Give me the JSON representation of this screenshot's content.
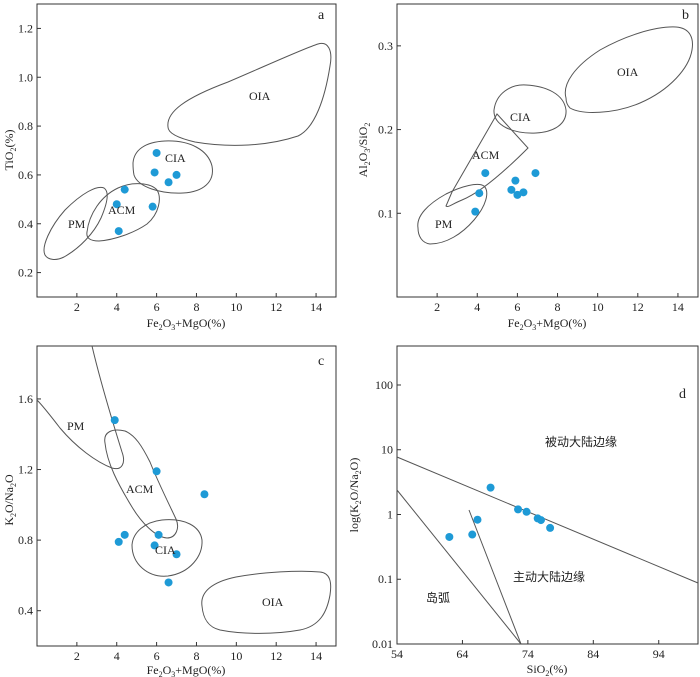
{
  "chart_data": [
    {
      "type": "scatter",
      "panel_label": "a",
      "xlabel": "Fe2O3+MgO(%)",
      "ylabel": "TiO2(%)",
      "xlim": [
        0,
        15
      ],
      "ylim": [
        0.1,
        1.3
      ],
      "x_ticks": [
        "2",
        "4",
        "6",
        "8",
        "10",
        "12",
        "14"
      ],
      "y_ticks": [
        "0.2",
        "0.4",
        "0.6",
        "0.8",
        "1.0",
        "1.2"
      ],
      "point_color": "#1e9ad6",
      "regions": [
        "OIA",
        "CIA",
        "ACM",
        "PM"
      ],
      "points": [
        {
          "x": 6.0,
          "y": 0.69
        },
        {
          "x": 5.9,
          "y": 0.61
        },
        {
          "x": 6.6,
          "y": 0.57
        },
        {
          "x": 7.0,
          "y": 0.6
        },
        {
          "x": 4.4,
          "y": 0.54
        },
        {
          "x": 4.0,
          "y": 0.48
        },
        {
          "x": 5.8,
          "y": 0.47
        },
        {
          "x": 4.1,
          "y": 0.37
        }
      ]
    },
    {
      "type": "scatter",
      "panel_label": "b",
      "xlabel": "Fe2O3+MgO(%)",
      "ylabel": "Al2O3/SiO2",
      "xlim": [
        0,
        15
      ],
      "ylim": [
        0.0,
        0.35
      ],
      "x_ticks": [
        "2",
        "4",
        "6",
        "8",
        "10",
        "12",
        "14"
      ],
      "y_ticks": [
        "0.1",
        "0.2",
        "0.3"
      ],
      "point_color": "#1e9ad6",
      "regions": [
        "OIA",
        "CIA",
        "ACM",
        "PM"
      ],
      "points": [
        {
          "x": 4.4,
          "y": 0.148
        },
        {
          "x": 6.9,
          "y": 0.148
        },
        {
          "x": 5.9,
          "y": 0.139
        },
        {
          "x": 5.7,
          "y": 0.128
        },
        {
          "x": 4.1,
          "y": 0.124
        },
        {
          "x": 6.0,
          "y": 0.122
        },
        {
          "x": 6.3,
          "y": 0.125
        },
        {
          "x": 3.9,
          "y": 0.102
        }
      ]
    },
    {
      "type": "scatter",
      "panel_label": "c",
      "xlabel": "Fe2O3+MgO(%)",
      "ylabel": "K2O/Na2O",
      "xlim": [
        0,
        15
      ],
      "ylim": [
        0.2,
        1.9
      ],
      "x_ticks": [
        "2",
        "4",
        "6",
        "8",
        "10",
        "12",
        "14"
      ],
      "y_ticks": [
        "0.4",
        "0.8",
        "1.2",
        "1.6"
      ],
      "point_color": "#1e9ad6",
      "regions": [
        "PM",
        "ACM",
        "CIA",
        "OIA"
      ],
      "points": [
        {
          "x": 3.9,
          "y": 1.48
        },
        {
          "x": 6.0,
          "y": 1.19
        },
        {
          "x": 8.4,
          "y": 1.06
        },
        {
          "x": 4.4,
          "y": 0.83
        },
        {
          "x": 6.1,
          "y": 0.83
        },
        {
          "x": 4.1,
          "y": 0.79
        },
        {
          "x": 5.9,
          "y": 0.77
        },
        {
          "x": 7.0,
          "y": 0.72
        },
        {
          "x": 6.6,
          "y": 0.56
        }
      ]
    },
    {
      "type": "scatter",
      "panel_label": "d",
      "xlabel": "SiO2(%)",
      "ylabel": "log(K2O/Na2O)",
      "xscale": "linear",
      "yscale": "log",
      "xlim": [
        54,
        100
      ],
      "ylim": [
        0.01,
        400
      ],
      "x_ticks": [
        "54",
        "64",
        "74",
        "84",
        "94"
      ],
      "y_ticks": [
        "0.01",
        "0.1",
        "1",
        "10",
        "100"
      ],
      "point_color": "#1e9ad6",
      "regions": [
        "被动大陆边缘",
        "主动大陆边缘",
        "岛弧"
      ],
      "points": [
        {
          "x": 68.3,
          "y": 2.6
        },
        {
          "x": 72.5,
          "y": 1.2
        },
        {
          "x": 73.8,
          "y": 1.1
        },
        {
          "x": 75.5,
          "y": 0.87
        },
        {
          "x": 76.0,
          "y": 0.82
        },
        {
          "x": 77.4,
          "y": 0.62
        },
        {
          "x": 66.3,
          "y": 0.83
        },
        {
          "x": 65.5,
          "y": 0.49
        },
        {
          "x": 62.0,
          "y": 0.45
        }
      ]
    }
  ],
  "labels": {
    "a": {
      "panel": "a",
      "xlabel_main": "Fe",
      "xlabel_sub1": "2",
      "xlabel_mid": "O",
      "xlabel_sub2": "3",
      "xlabel_tail": "+MgO(%)",
      "ylabel_main": "TiO",
      "ylabel_sub": "2",
      "ylabel_tail": "(%)",
      "regions": {
        "OIA": "OIA",
        "CIA": "CIA",
        "ACM": "ACM",
        "PM": "PM"
      }
    },
    "b": {
      "panel": "b",
      "xlabel_main": "Fe",
      "xlabel_sub1": "2",
      "xlabel_mid": "O",
      "xlabel_sub2": "3",
      "xlabel_tail": "+MgO(%)",
      "ylabel_p1": "Al",
      "ylabel_s1": "2",
      "ylabel_p2": "O",
      "ylabel_s2": "3",
      "ylabel_p3": "/SiO",
      "ylabel_s3": "2",
      "regions": {
        "OIA": "OIA",
        "CIA": "CIA",
        "ACM": "ACM",
        "PM": "PM"
      }
    },
    "c": {
      "panel": "c",
      "xlabel_main": "Fe",
      "xlabel_sub1": "2",
      "xlabel_mid": "O",
      "xlabel_sub2": "3",
      "xlabel_tail": "+MgO(%)",
      "ylabel_p1": "K",
      "ylabel_s1": "2",
      "ylabel_p2": "O/Na",
      "ylabel_s2": "2",
      "ylabel_p3": "O",
      "regions": {
        "PM": "PM",
        "ACM": "ACM",
        "CIA": "CIA",
        "OIA": "OIA"
      }
    },
    "d": {
      "panel": "d",
      "xlabel_main": "SiO",
      "xlabel_sub": "2",
      "xlabel_tail": "(%)",
      "ylabel_p1": "log(K",
      "ylabel_s1": "2",
      "ylabel_p2": "O/Na",
      "ylabel_s2": "2",
      "ylabel_p3": "O)",
      "regions": {
        "passive": "被动大陆边缘",
        "active": "主动大陆边缘",
        "arc": "岛弧"
      }
    }
  }
}
